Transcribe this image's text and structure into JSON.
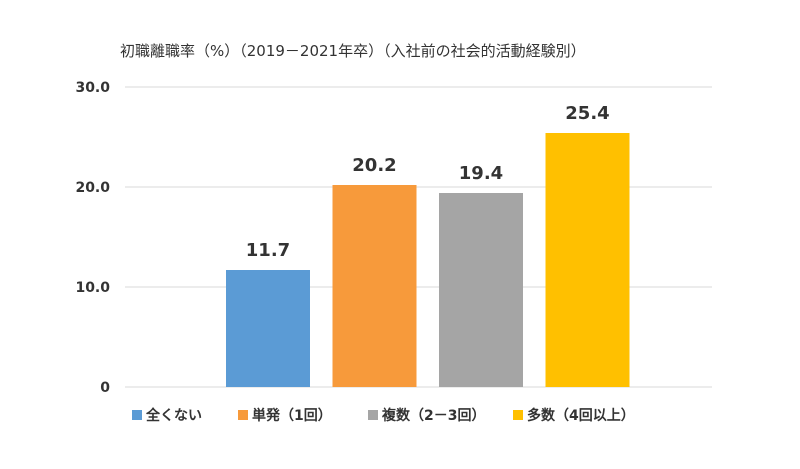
{
  "chart_data": {
    "type": "bar",
    "title": "初職離職率（%）（2019－2021年卒）（入社前の社会的活動経験別）",
    "categories": [
      "全くない",
      "単発（1回）",
      "複数（2－3回）",
      "多数（4回以上）"
    ],
    "values": [
      11.7,
      20.2,
      19.4,
      25.4
    ],
    "data_labels": [
      "11.7",
      "20.2",
      "19.4",
      "25.4"
    ],
    "colors": [
      "#5b9bd5",
      "#f79a3b",
      "#a5a5a5",
      "#ffc000"
    ],
    "ylim": [
      0,
      30
    ],
    "y_ticks": [
      0,
      10,
      20,
      30
    ],
    "y_tick_labels": [
      "0",
      "10.0",
      "20.0",
      "30.0"
    ],
    "grid": true,
    "legend_position": "bottom",
    "xlabel": "",
    "ylabel": ""
  }
}
